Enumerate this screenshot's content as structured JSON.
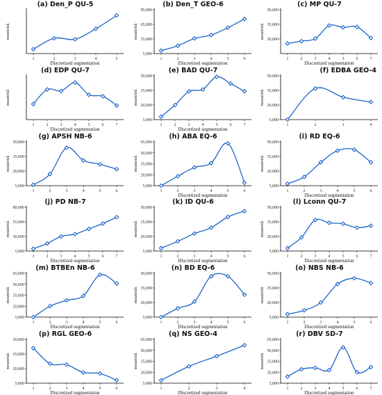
{
  "colors": {
    "line": "#1a63c8",
    "marker_fill": "#ffffff",
    "marker_stroke": "#1a63c8",
    "axis": "#000000"
  },
  "chart_data": [
    {
      "type": "line",
      "title": "(a) Den_P QU-5",
      "x": [
        1,
        2,
        3,
        4,
        5
      ],
      "y": [
        8700,
        17900,
        17100,
        25900,
        37200
      ],
      "ylim": [
        5000,
        42000
      ],
      "yticks": [],
      "ylabel": "meantrisk",
      "xlabel": "Discretized segmentation",
      "xticklabels": [
        "1",
        "2",
        "3",
        "4",
        "5"
      ]
    },
    {
      "type": "line",
      "title": "(b) Den_T GEO-6",
      "x": [
        1,
        2,
        3,
        4,
        5,
        6
      ],
      "y": [
        11000,
        21000,
        36000,
        43000,
        58000,
        76000
      ],
      "ylim": [
        5000,
        95000
      ],
      "yticks": [
        5000,
        35000,
        65000,
        95000
      ],
      "ylabel": "meantrisk",
      "xlabel": "Discretized segmentation",
      "xticklabels": [
        "1",
        "2",
        "3",
        "4",
        "5",
        "6"
      ]
    },
    {
      "type": "line",
      "title": "(c) MP QU-7",
      "x": [
        1,
        2,
        3,
        4,
        5,
        6,
        7
      ],
      "y": [
        15300,
        17800,
        20300,
        33800,
        31900,
        32400,
        20900
      ],
      "ylim": [
        5000,
        50000
      ],
      "yticks": [
        20000,
        35000,
        50000
      ],
      "ylabel": "meantrisk",
      "xlabel": "Discretized segmentation",
      "xticklabels": [
        "1",
        "2",
        "3",
        "4",
        "5",
        "6",
        "7"
      ]
    },
    {
      "type": "line",
      "title": "(d) EDP QU-7",
      "x": [
        1,
        2,
        3,
        4,
        5,
        6,
        7
      ],
      "y": [
        21000,
        36000,
        34500,
        43000,
        30500,
        29000,
        19500
      ],
      "ylim": [
        5000,
        50000
      ],
      "yticks": [],
      "ylabel": "meantrisk",
      "xlabel": "Discretized segmentation",
      "xticklabels": [
        "1",
        "2",
        "3",
        "4",
        "5",
        "6",
        "7"
      ]
    },
    {
      "type": "line",
      "title": "(e) BAD QU-7",
      "x": [
        1,
        2,
        3,
        4,
        5,
        6,
        7
      ],
      "y": [
        8000,
        20000,
        34000,
        36000,
        49000,
        42000,
        34000
      ],
      "ylim": [
        5000,
        50000
      ],
      "yticks": [
        5000,
        20000,
        35000,
        50000
      ],
      "ylabel": "meantrisk",
      "xlabel": "Discretized segmentation",
      "xticklabels": [
        "1",
        "2",
        "3",
        "4",
        "5",
        "6",
        "7"
      ]
    },
    {
      "type": "line",
      "title": "(f) EDBA GEO-4",
      "x": [
        1,
        2,
        3,
        4
      ],
      "y": [
        5000,
        37000,
        28000,
        23000
      ],
      "ylim": [
        5000,
        50000
      ],
      "yticks": [
        5000,
        20000,
        35000,
        50000
      ],
      "ylabel": "meantrisk",
      "xlabel": "",
      "xticklabels": [
        "1",
        "2",
        "3",
        "4"
      ]
    },
    {
      "type": "line",
      "title": "(g) APSH NB-6",
      "x": [
        1,
        2,
        3,
        4,
        5,
        6
      ],
      "y": [
        6000,
        17000,
        44000,
        31000,
        27000,
        22000
      ],
      "ylim": [
        5000,
        50000
      ],
      "yticks": [
        5000,
        20000,
        35000,
        50000
      ],
      "ylabel": "meantrisk",
      "xlabel": "",
      "xticklabels": [
        "1",
        "2",
        "3",
        "4",
        "5",
        "6"
      ]
    },
    {
      "type": "line",
      "title": "(h) ABA EQ-6",
      "x": [
        1,
        2,
        3,
        4,
        5,
        6
      ],
      "y": [
        5000,
        18000,
        30000,
        36000,
        63000,
        9000
      ],
      "ylim": [
        5000,
        65000
      ],
      "yticks": [
        5000,
        20000,
        35000,
        50000,
        65000
      ],
      "ylabel": "meantrisk",
      "xlabel": "Discretized segmentation",
      "xticklabels": [
        "1",
        "2",
        "3",
        "4",
        "5",
        "6"
      ]
    },
    {
      "type": "line",
      "title": "(i) RD EQ-6",
      "x": [
        1,
        2,
        3,
        4,
        5,
        6
      ],
      "y": [
        7000,
        14000,
        29000,
        41000,
        42000,
        29000
      ],
      "ylim": [
        5000,
        50000
      ],
      "yticks": [
        5000,
        20000,
        35000,
        50000
      ],
      "ylabel": "meantrisk",
      "xlabel": "Discretized segmentation",
      "xticklabels": [
        "1",
        "2",
        "3",
        "4",
        "5",
        "6"
      ]
    },
    {
      "type": "line",
      "title": "(j) PD NB-7",
      "x": [
        1,
        2,
        3,
        4,
        5,
        6,
        7
      ],
      "y": [
        9000,
        18000,
        30000,
        34000,
        43000,
        52000,
        63000
      ],
      "ylim": [
        5000,
        80000
      ],
      "yticks": [
        5000,
        30000,
        55000,
        80000
      ],
      "ylabel": "meantrisk",
      "xlabel": "Discretized segmentation",
      "xticklabels": [
        "1",
        "2",
        "3",
        "4",
        "5",
        "6",
        "7"
      ]
    },
    {
      "type": "line",
      "title": "(k) ID QU-6",
      "x": [
        1,
        2,
        3,
        4,
        5,
        6
      ],
      "y": [
        8000,
        15000,
        23000,
        29000,
        40000,
        46000
      ],
      "ylim": [
        5000,
        50000
      ],
      "yticks": [
        5000,
        20000,
        35000,
        50000
      ],
      "ylabel": "meantrisk",
      "xlabel": "Discretized segmentation",
      "xticklabels": [
        "1",
        "2",
        "3",
        "4",
        "5",
        "6"
      ]
    },
    {
      "type": "line",
      "title": "(l) Lconn QU-7",
      "x": [
        1,
        2,
        3,
        4,
        5,
        6,
        7
      ],
      "y": [
        8000,
        19000,
        37000,
        34000,
        33000,
        29000,
        31000
      ],
      "ylim": [
        5000,
        50000
      ],
      "yticks": [
        5000,
        20000,
        35000,
        50000
      ],
      "ylabel": "meantrisk",
      "xlabel": "Discretized segmentation",
      "xticklabels": [
        "1",
        "2",
        "3",
        "4",
        "5",
        "6",
        "7"
      ]
    },
    {
      "type": "line",
      "title": "(m) BTBEn NB-6",
      "x": [
        1,
        2,
        3,
        4,
        5,
        6
      ],
      "y": [
        5000,
        20000,
        28000,
        34000,
        63000,
        51000
      ],
      "ylim": [
        5000,
        65000
      ],
      "yticks": [
        5000,
        20000,
        35000,
        50000,
        65000
      ],
      "ylabel": "meantrisk",
      "xlabel": "Discretized segmentation",
      "xticklabels": [
        "1",
        "2",
        "3",
        "4",
        "5",
        "6"
      ]
    },
    {
      "type": "line",
      "title": "(n) BD EQ-6",
      "x": [
        1,
        2,
        3,
        4,
        5,
        6
      ],
      "y": [
        5000,
        14000,
        21000,
        47000,
        47000,
        28000
      ],
      "ylim": [
        5000,
        50000
      ],
      "yticks": [
        5000,
        20000,
        35000,
        50000
      ],
      "ylabel": "meantrisk",
      "xlabel": "Discretized segmentation",
      "xticklabels": [
        "1",
        "2",
        "3",
        "4",
        "5",
        "6"
      ]
    },
    {
      "type": "line",
      "title": "(o) NBS NB-6",
      "x": [
        1,
        2,
        3,
        4,
        5,
        6
      ],
      "y": [
        8000,
        12000,
        20000,
        39000,
        45000,
        40000
      ],
      "ylim": [
        5000,
        50000
      ],
      "yticks": [
        5000,
        20000,
        35000,
        50000
      ],
      "ylabel": "meantrisk",
      "xlabel": "Discretized segmentation",
      "xticklabels": [
        "1",
        "2",
        "3",
        "4",
        "5",
        "6"
      ]
    },
    {
      "type": "line",
      "title": "(p) RGL GEO-6",
      "x": [
        1,
        2,
        3,
        4,
        5,
        6
      ],
      "y": [
        41000,
        25000,
        24000,
        16000,
        15000,
        8000
      ],
      "ylim": [
        5000,
        50000
      ],
      "yticks": [
        5000,
        20000,
        35000,
        50000
      ],
      "ylabel": "meantrisk",
      "xlabel": "Discretized segmentation",
      "xticklabels": [
        "1",
        "2",
        "3",
        "4",
        "5",
        "6"
      ]
    },
    {
      "type": "line",
      "title": "(q) NS GEO-4",
      "x": [
        1,
        2,
        3,
        4
      ],
      "y": [
        9000,
        28000,
        42000,
        57000
      ],
      "ylim": [
        5000,
        65000
      ],
      "yticks": [
        5000,
        20000,
        35000,
        50000,
        65000
      ],
      "ylabel": "meantrisk",
      "xlabel": "Discretized segmentation",
      "xticklabels": [
        "1",
        "2",
        "3",
        "4"
      ]
    },
    {
      "type": "line",
      "title": "(r) DBV SD-7",
      "x": [
        1,
        2,
        3,
        4,
        5,
        6,
        7
      ],
      "y": [
        14000,
        24000,
        26000,
        23000,
        54000,
        20000,
        27000
      ],
      "ylim": [
        5000,
        65000
      ],
      "yticks": [
        5000,
        20000,
        35000,
        50000,
        65000
      ],
      "ylabel": "meantrisk",
      "xlabel": "Discretized segmentation",
      "xticklabels": [
        "1",
        "2",
        "3",
        "4",
        "5",
        "6",
        "7"
      ]
    }
  ]
}
